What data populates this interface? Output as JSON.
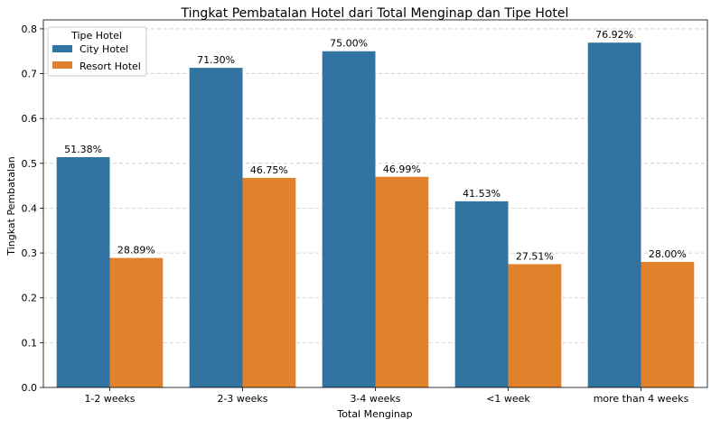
{
  "chart_data": {
    "type": "bar",
    "title": "Tingkat Pembatalan Hotel dari Total Menginap dan Tipe Hotel",
    "xlabel": "Total Menginap",
    "ylabel": "Tingkat Pembatalan",
    "categories": [
      "1-2 weeks",
      "2-3 weeks",
      "3-4 weeks",
      "<1 week",
      "more than 4 weeks"
    ],
    "series": [
      {
        "name": "City Hotel",
        "color": "#3274a1",
        "values": [
          0.5138,
          0.713,
          0.75,
          0.4153,
          0.7692
        ],
        "labels": [
          "51.38%",
          "71.30%",
          "75.00%",
          "41.53%",
          "76.92%"
        ]
      },
      {
        "name": "Resort Hotel",
        "color": "#e1812c",
        "values": [
          0.2889,
          0.4675,
          0.4699,
          0.2751,
          0.28
        ],
        "labels": [
          "28.89%",
          "46.75%",
          "46.99%",
          "27.51%",
          "28.00%"
        ]
      }
    ],
    "ylim": [
      0,
      0.82
    ],
    "yticks": [
      "0.0",
      "0.1",
      "0.2",
      "0.3",
      "0.4",
      "0.5",
      "0.6",
      "0.7",
      "0.8"
    ],
    "grid": "y, dashed",
    "legend": {
      "title": "Tipe Hotel",
      "position": "top-left"
    }
  }
}
